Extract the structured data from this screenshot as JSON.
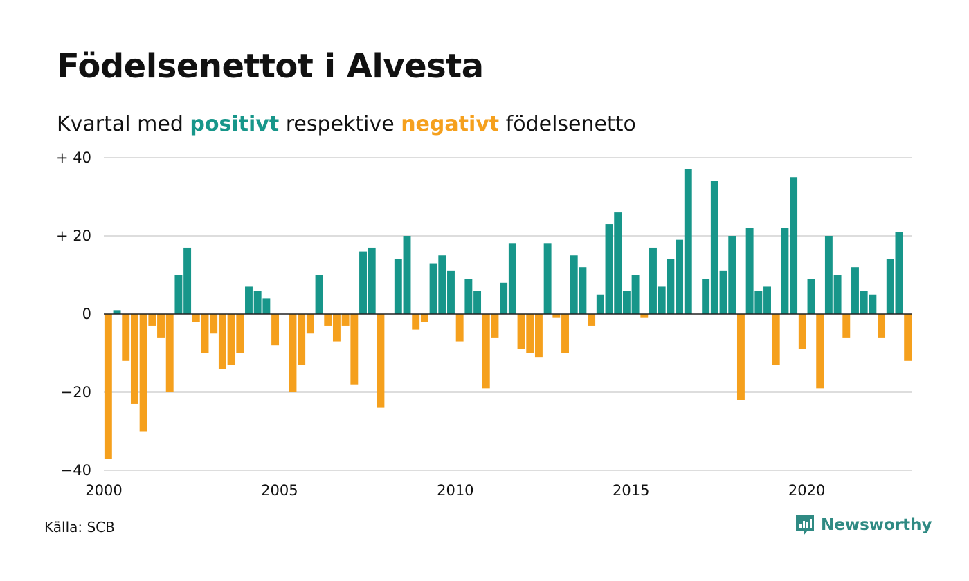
{
  "title": "Födelsenettot i Alvesta",
  "subtitle": {
    "prefix": "Kvartal med ",
    "positive": "positivt",
    "middle": " respektive ",
    "negative": "negativt",
    "suffix": " födelsenetto"
  },
  "source": "Källa: SCB",
  "brand": {
    "name": "Newsworthy",
    "icon": "newsworthy-logo-icon"
  },
  "colors": {
    "positive": "#17968a",
    "negative": "#f5a01d",
    "grid": "#dddddd",
    "axis": "#222222"
  },
  "chart_data": {
    "type": "bar",
    "x_start": 2000,
    "x_step": 0.25,
    "xlim": [
      2000,
      2023
    ],
    "ylim": [
      -40,
      40
    ],
    "y_ticks": [
      -40,
      -20,
      0,
      20,
      40
    ],
    "y_tick_labels": [
      "−40",
      "−20",
      "0",
      "+ 20",
      "+ 40"
    ],
    "x_ticks": [
      2000,
      2005,
      2010,
      2015,
      2020
    ],
    "x_tick_labels": [
      "2000",
      "2005",
      "2010",
      "2015",
      "2020"
    ],
    "grid": true,
    "values": [
      -37,
      1,
      -12,
      -23,
      -30,
      -3,
      -6,
      -20,
      10,
      17,
      -2,
      -10,
      -5,
      -14,
      -13,
      -10,
      7,
      6,
      4,
      -8,
      0,
      -20,
      -13,
      -5,
      10,
      -3,
      -7,
      -3,
      -18,
      16,
      17,
      -24,
      0,
      14,
      20,
      -4,
      -2,
      13,
      15,
      11,
      -7,
      9,
      6,
      -19,
      -6,
      8,
      18,
      -9,
      -10,
      -11,
      18,
      -1,
      -10,
      15,
      12,
      -3,
      5,
      23,
      26,
      6,
      10,
      -1,
      17,
      7,
      14,
      19,
      37,
      0,
      9,
      34,
      11,
      20,
      -22,
      22,
      6,
      7,
      -13,
      22,
      35,
      -9,
      9,
      -19,
      20,
      10,
      -6,
      12,
      6,
      5,
      -6,
      14,
      21,
      -12
    ]
  }
}
